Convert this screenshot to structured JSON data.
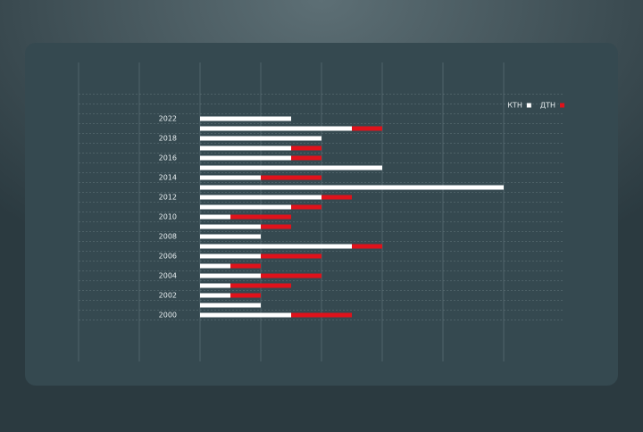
{
  "chart_data": {
    "type": "stacked-barh",
    "categories": [
      "2022",
      null,
      "2018",
      null,
      "2016",
      null,
      "2014",
      null,
      "2012",
      null,
      "2010",
      null,
      "2008",
      null,
      "2006",
      null,
      "2004",
      null,
      "2002",
      null,
      "2000"
    ],
    "series": [
      {
        "name": "КТН",
        "color": "#ffffff",
        "values": [
          1.5,
          2.5,
          2.0,
          1.5,
          1.5,
          3.0,
          1.0,
          5.0,
          2.0,
          1.5,
          0.5,
          1.0,
          1.0,
          2.5,
          1.0,
          0.5,
          1.0,
          0.5,
          0.5,
          1.0,
          1.5
        ]
      },
      {
        "name": "ДТН",
        "color": "#e0121b",
        "values": [
          0,
          0.5,
          0,
          0.5,
          0.5,
          0,
          1.0,
          0,
          0.5,
          0.5,
          1.0,
          0.5,
          0,
          0.5,
          1.0,
          0.5,
          1.0,
          1.0,
          0.5,
          0,
          1.0
        ]
      }
    ],
    "xlim": [
      -2,
      5
    ],
    "xticks": [
      -2,
      -1,
      0,
      1,
      2,
      3,
      4,
      5
    ],
    "grid": true,
    "legend": "top-right"
  }
}
